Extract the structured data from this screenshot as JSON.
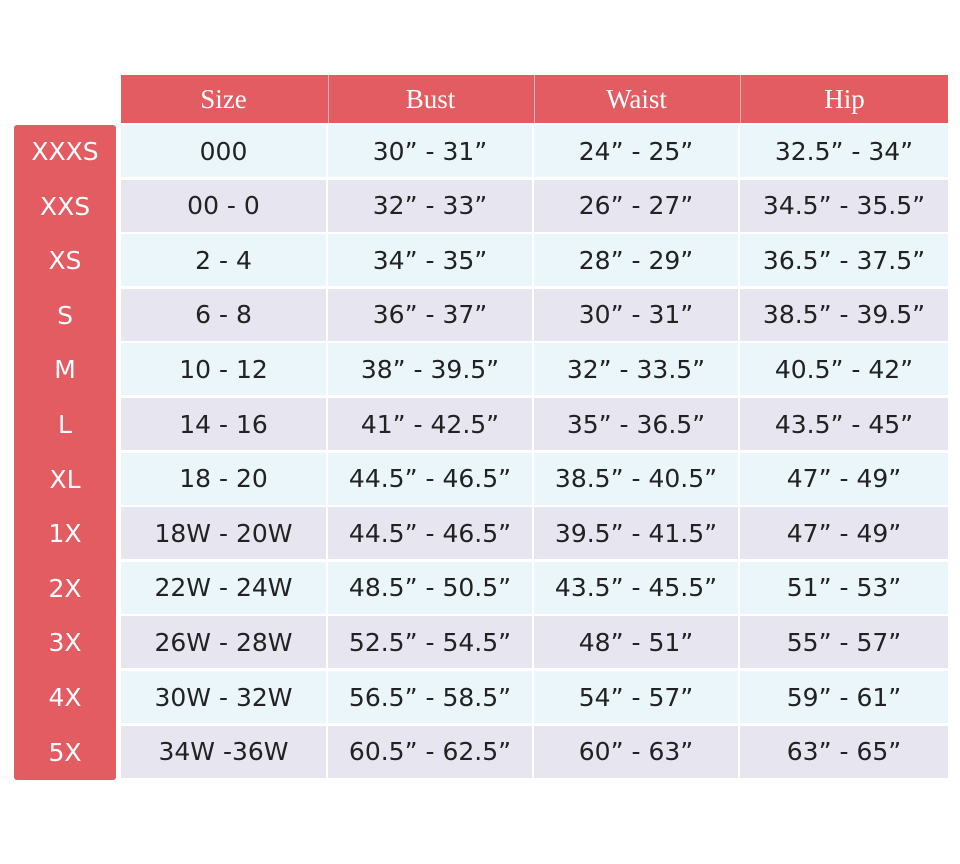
{
  "table": {
    "header": [
      "Size",
      "Bust",
      "Waist",
      "Hip"
    ],
    "row_labels": [
      "XXXS",
      "XXS",
      "XS",
      "S",
      "M",
      "L",
      "XL",
      "1X",
      "2X",
      "3X",
      "4X",
      "5X"
    ],
    "rows": [
      [
        "000",
        "30” - 31”",
        "24” - 25”",
        "32.5” - 34”"
      ],
      [
        "00 - 0",
        "32” - 33”",
        "26” - 27”",
        "34.5” - 35.5”"
      ],
      [
        "2 - 4",
        "34” - 35”",
        "28” - 29”",
        "36.5” - 37.5”"
      ],
      [
        "6 - 8",
        "36” - 37”",
        "30” - 31”",
        "38.5” - 39.5”"
      ],
      [
        "10 - 12",
        "38” - 39.5”",
        "32” - 33.5”",
        "40.5” - 42”"
      ],
      [
        "14 - 16",
        "41” - 42.5”",
        "35” - 36.5”",
        "43.5” - 45”"
      ],
      [
        "18 - 20",
        "44.5” - 46.5”",
        "38.5” - 40.5”",
        "47” - 49”"
      ],
      [
        "18W - 20W",
        "44.5” - 46.5”",
        "39.5” - 41.5”",
        "47” - 49”"
      ],
      [
        "22W - 24W",
        "48.5” - 50.5”",
        "43.5” - 45.5”",
        "51” - 53”"
      ],
      [
        "26W - 28W",
        "52.5” - 54.5”",
        "48” - 51”",
        "55” - 57”"
      ],
      [
        "30W - 32W",
        "56.5” - 58.5”",
        "54” - 57”",
        "59” - 61”"
      ],
      [
        "34W -36W",
        "60.5” - 62.5”",
        "60” - 63”",
        "63” - 65”"
      ]
    ]
  }
}
